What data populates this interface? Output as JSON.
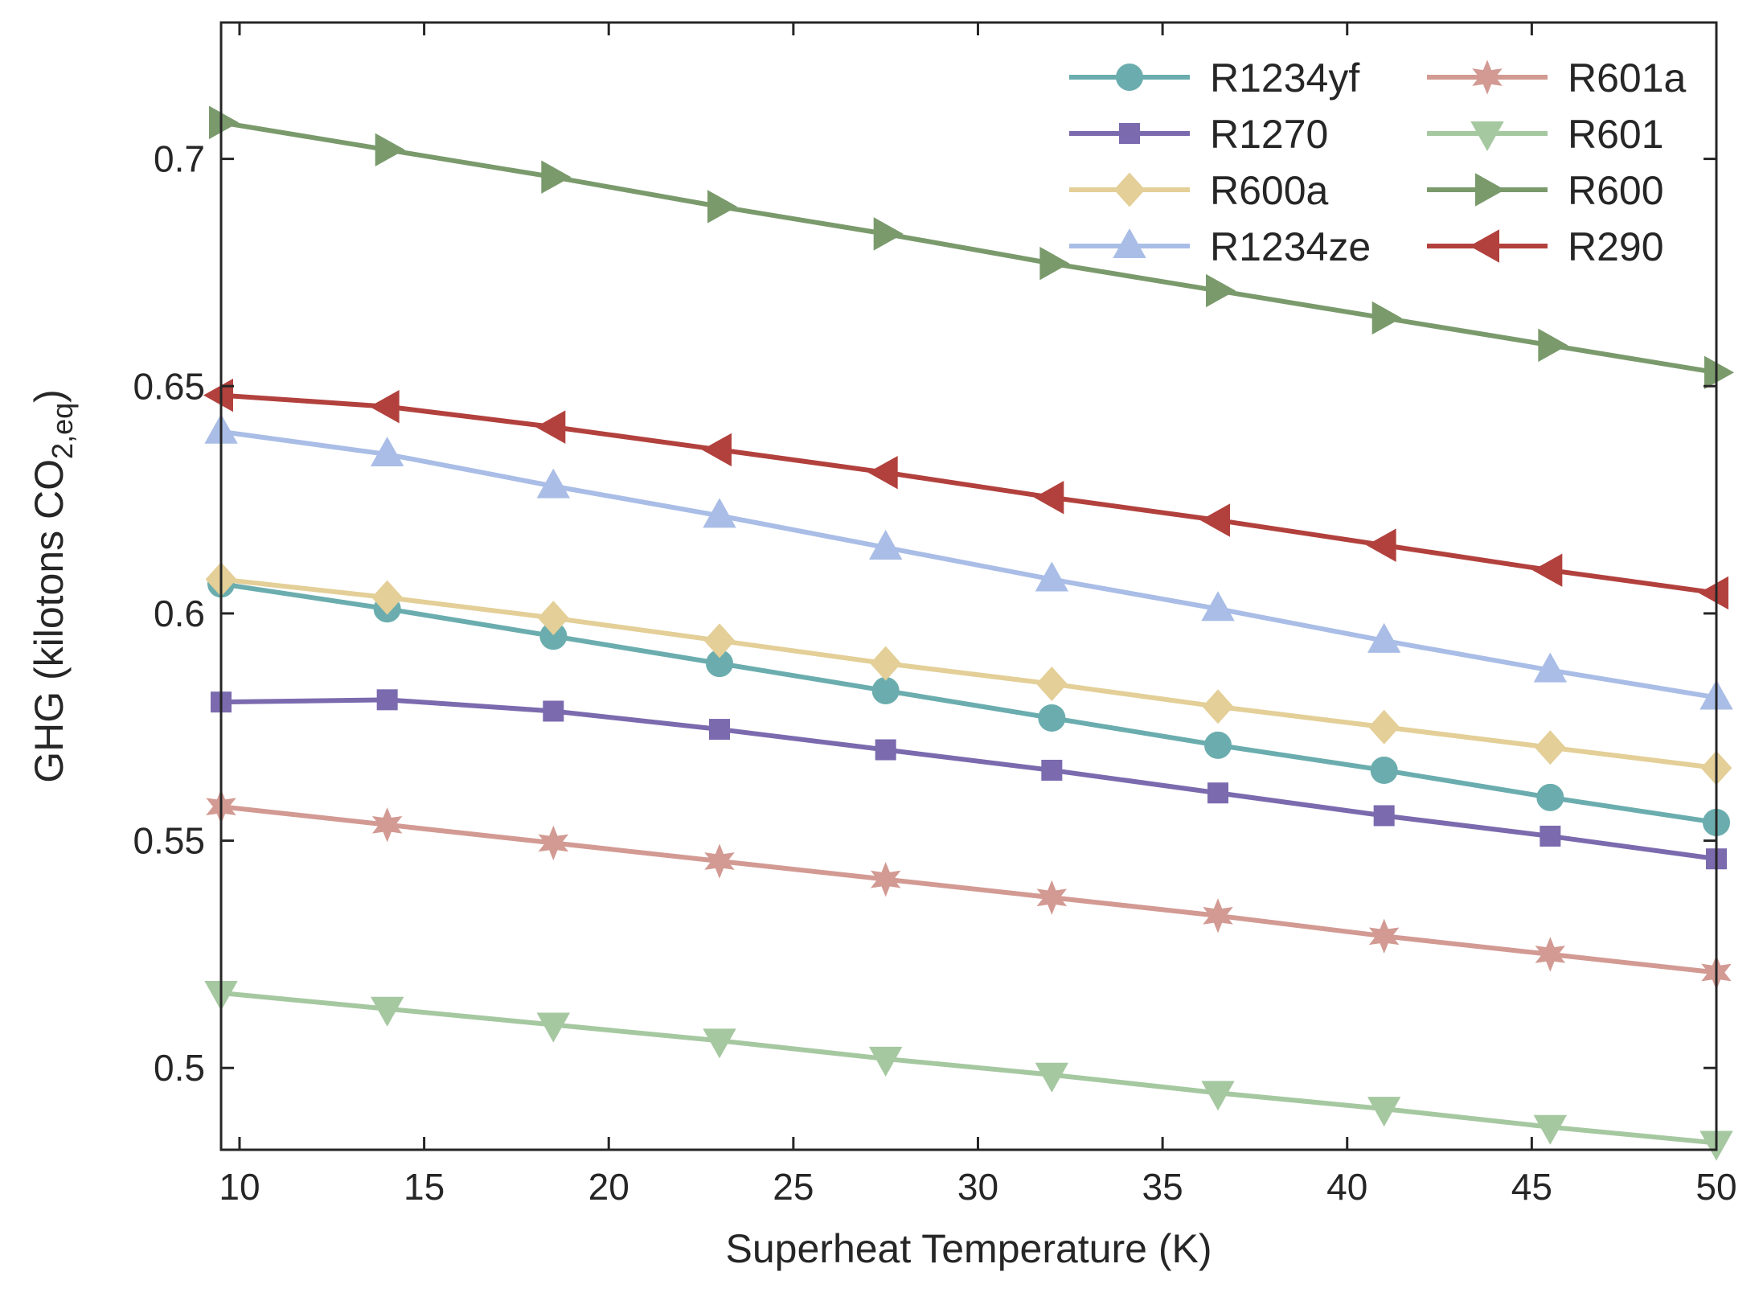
{
  "chart_data": {
    "type": "line",
    "title": "",
    "xlabel": "Superheat Temperature (K)",
    "ylabel": {
      "prefix": "GHG (kilotons CO",
      "sub": "2,eq",
      "suffix": ")"
    },
    "xlim": [
      9.5,
      50
    ],
    "ylim": [
      0.482,
      0.73
    ],
    "xticks": [
      10,
      15,
      20,
      25,
      30,
      35,
      40,
      45,
      50
    ],
    "yticks": [
      0.5,
      0.55,
      0.6,
      0.65,
      0.7
    ],
    "xtick_labels": [
      "10",
      "15",
      "20",
      "25",
      "30",
      "35",
      "40",
      "45",
      "50"
    ],
    "ytick_labels": [
      "0.5",
      "0.55",
      "0.6",
      "0.65",
      "0.7"
    ],
    "grid": false,
    "legend_position": "top-right",
    "legend_columns": 2,
    "x": [
      9.5,
      14,
      18.5,
      23,
      27.5,
      32,
      36.5,
      41,
      45.5,
      50
    ],
    "series": [
      {
        "name": "R1234yf",
        "marker": "circle",
        "color": "#6BADAE",
        "values": [
          0.6065,
          0.601,
          0.595,
          0.589,
          0.583,
          0.577,
          0.571,
          0.5655,
          0.5595,
          0.554
        ]
      },
      {
        "name": "R1270",
        "marker": "square",
        "color": "#7B6AAE",
        "values": [
          0.5805,
          0.581,
          0.5785,
          0.5745,
          0.57,
          0.5655,
          0.5605,
          0.5555,
          0.551,
          0.546
        ]
      },
      {
        "name": "R600a",
        "marker": "diamond",
        "color": "#E3CF97",
        "values": [
          0.6075,
          0.6035,
          0.599,
          0.594,
          0.589,
          0.5845,
          0.5795,
          0.575,
          0.5705,
          0.566
        ]
      },
      {
        "name": "R1234ze",
        "marker": "triangle-up",
        "color": "#A9BDE6",
        "values": [
          0.64,
          0.635,
          0.628,
          0.6215,
          0.6145,
          0.6075,
          0.601,
          0.594,
          0.5875,
          0.5815
        ]
      },
      {
        "name": "R601a",
        "marker": "star",
        "color": "#D29A93",
        "values": [
          0.5575,
          0.5535,
          0.5495,
          0.5455,
          0.5415,
          0.5375,
          0.5335,
          0.529,
          0.525,
          0.521
        ]
      },
      {
        "name": "R601",
        "marker": "triangle-down",
        "color": "#A5C8A0",
        "values": [
          0.5165,
          0.513,
          0.5095,
          0.506,
          0.502,
          0.4985,
          0.4945,
          0.491,
          0.487,
          0.4835
        ]
      },
      {
        "name": "R600",
        "marker": "triangle-right",
        "color": "#7A9A6C",
        "values": [
          0.708,
          0.702,
          0.696,
          0.6895,
          0.6835,
          0.677,
          0.671,
          0.665,
          0.659,
          0.653
        ]
      },
      {
        "name": "R290",
        "marker": "triangle-left",
        "color": "#B2413D",
        "values": [
          0.648,
          0.6455,
          0.641,
          0.636,
          0.631,
          0.6255,
          0.6205,
          0.615,
          0.6095,
          0.6045
        ]
      }
    ]
  }
}
